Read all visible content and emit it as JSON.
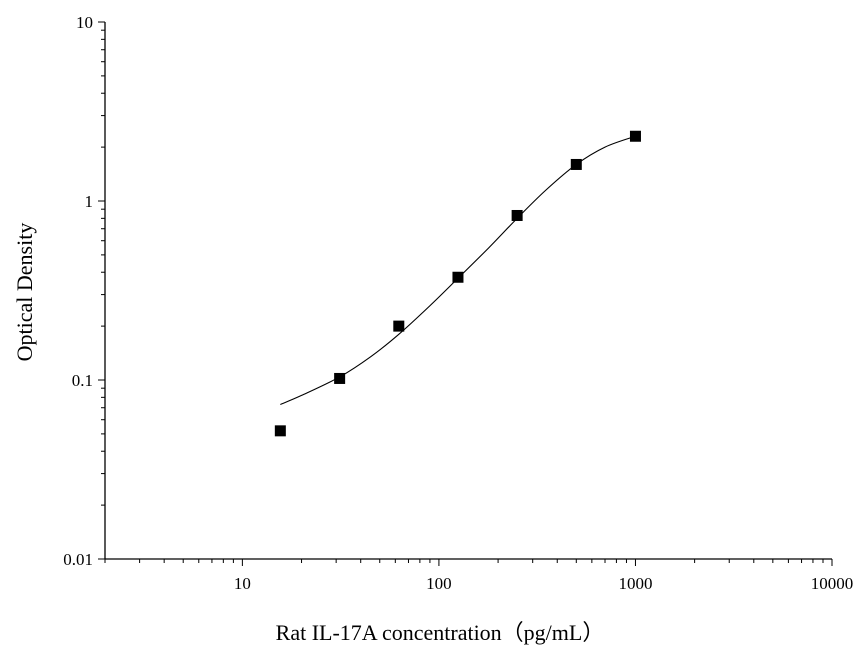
{
  "chart_data": {
    "type": "scatter",
    "title": "",
    "xlabel": "Rat IL-17A concentration（pg/mL）",
    "ylabel": "Optical Density",
    "x_scale": "log",
    "y_scale": "log",
    "xlim": [
      2,
      10000
    ],
    "ylim": [
      0.01,
      10
    ],
    "x_ticks": [
      10,
      100,
      1000,
      10000
    ],
    "x_tick_labels": [
      "10",
      "100",
      "1000",
      "10000"
    ],
    "y_ticks": [
      0.01,
      0.1,
      1,
      10
    ],
    "y_tick_labels": [
      "0.01",
      "0.1",
      "1",
      "10"
    ],
    "grid": false,
    "legend": "none",
    "series": [
      {
        "type": "scatter",
        "marker": "square",
        "color": "#000000",
        "points": [
          {
            "x": 15.6,
            "y": 0.052
          },
          {
            "x": 31.25,
            "y": 0.102
          },
          {
            "x": 62.5,
            "y": 0.2
          },
          {
            "x": 125,
            "y": 0.375
          },
          {
            "x": 250,
            "y": 0.83
          },
          {
            "x": 500,
            "y": 1.6
          },
          {
            "x": 1000,
            "y": 2.3
          }
        ]
      },
      {
        "type": "line",
        "style": "fit-curve",
        "color": "#000000",
        "points": [
          {
            "x": 15.6,
            "y": 0.073
          },
          {
            "x": 20,
            "y": 0.082
          },
          {
            "x": 31.25,
            "y": 0.104
          },
          {
            "x": 45,
            "y": 0.135
          },
          {
            "x": 62.5,
            "y": 0.18
          },
          {
            "x": 90,
            "y": 0.26
          },
          {
            "x": 125,
            "y": 0.37
          },
          {
            "x": 180,
            "y": 0.55
          },
          {
            "x": 250,
            "y": 0.8
          },
          {
            "x": 350,
            "y": 1.15
          },
          {
            "x": 500,
            "y": 1.6
          },
          {
            "x": 700,
            "y": 2.0
          },
          {
            "x": 1000,
            "y": 2.3
          }
        ]
      }
    ]
  }
}
